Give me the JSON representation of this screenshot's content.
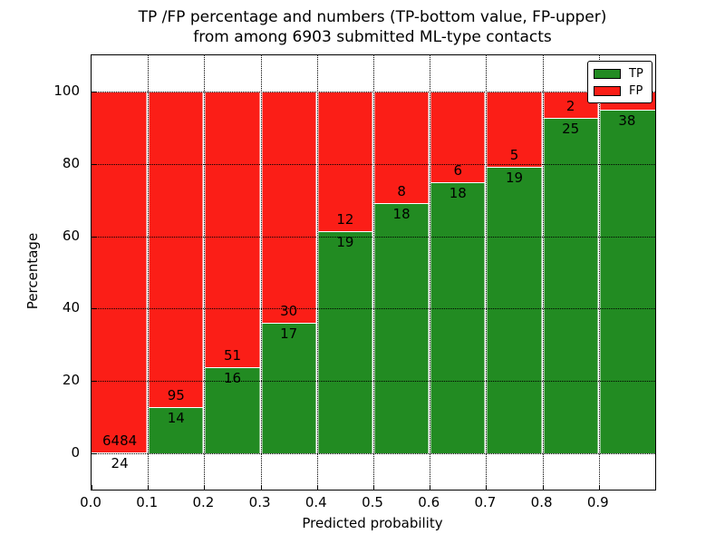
{
  "title": {
    "line1": "TP /FP percentage and numbers (TP-bottom value, FP-upper)",
    "line2": "from among 6903 submitted ML-type contacts"
  },
  "axes": {
    "xlabel": "Predicted probability",
    "ylabel": "Percentage",
    "x_tick_labels": [
      "0.0",
      "0.1",
      "0.2",
      "0.3",
      "0.4",
      "0.5",
      "0.6",
      "0.7",
      "0.8",
      "0.9"
    ],
    "y_tick_labels": [
      "0",
      "20",
      "40",
      "60",
      "80",
      "100"
    ]
  },
  "legend": {
    "position": "upper right",
    "tp_label": "TP",
    "fp_label": "FP"
  },
  "colors": {
    "tp_green": "#228B22",
    "fp_red": "#fb1e17",
    "grid": "#000000",
    "background": "#ffffff"
  },
  "chart_data": {
    "type": "bar",
    "variant": "stacked-percentage",
    "title": "TP /FP percentage and numbers (TP-bottom value, FP-upper) from among 6903 submitted ML-type contacts",
    "xlabel": "Predicted probability",
    "ylabel": "Percentage",
    "xlim": [
      0.0,
      1.0
    ],
    "ylim": [
      -10,
      110
    ],
    "x_ticks": [
      0.0,
      0.1,
      0.2,
      0.3,
      0.4,
      0.5,
      0.6,
      0.7,
      0.8,
      0.9
    ],
    "y_ticks": [
      0,
      20,
      40,
      60,
      80,
      100
    ],
    "grid": "dotted, drawn over bars",
    "legend_position": "upper right",
    "series": [
      {
        "name": "TP",
        "color": "#228B22",
        "pct": [
          0.37,
          12.84,
          23.88,
          36.17,
          61.29,
          69.23,
          75.0,
          79.17,
          92.59,
          95.0
        ]
      },
      {
        "name": "FP",
        "color": "#fb1e17",
        "pct": [
          99.63,
          87.16,
          76.12,
          63.83,
          38.71,
          30.77,
          25.0,
          20.83,
          7.41,
          5.0
        ]
      }
    ],
    "bins": [
      {
        "range": [
          0.0,
          0.1
        ],
        "tp_count": "24",
        "fp_count": "6484",
        "tp_pct": 0.37
      },
      {
        "range": [
          0.1,
          0.2
        ],
        "tp_count": "14",
        "fp_count": "95",
        "tp_pct": 12.84
      },
      {
        "range": [
          0.2,
          0.3
        ],
        "tp_count": "16",
        "fp_count": "51",
        "tp_pct": 23.88
      },
      {
        "range": [
          0.3,
          0.4
        ],
        "tp_count": "17",
        "fp_count": "30",
        "tp_pct": 36.17
      },
      {
        "range": [
          0.4,
          0.5
        ],
        "tp_count": "19",
        "fp_count": "12",
        "tp_pct": 61.29
      },
      {
        "range": [
          0.5,
          0.6
        ],
        "tp_count": "18",
        "fp_count": "8",
        "tp_pct": 69.23
      },
      {
        "range": [
          0.6,
          0.7
        ],
        "tp_count": "18",
        "fp_count": "6",
        "tp_pct": 75.0
      },
      {
        "range": [
          0.7,
          0.8
        ],
        "tp_count": "19",
        "fp_count": "5",
        "tp_pct": 79.17
      },
      {
        "range": [
          0.8,
          0.9
        ],
        "tp_count": "25",
        "fp_count": "2",
        "tp_pct": 92.59
      },
      {
        "range": [
          0.9,
          1.0
        ],
        "tp_count": "38",
        "fp_count": "",
        "tp_pct": 95.0,
        "fp_label_hidden_by_legend": true
      }
    ]
  }
}
